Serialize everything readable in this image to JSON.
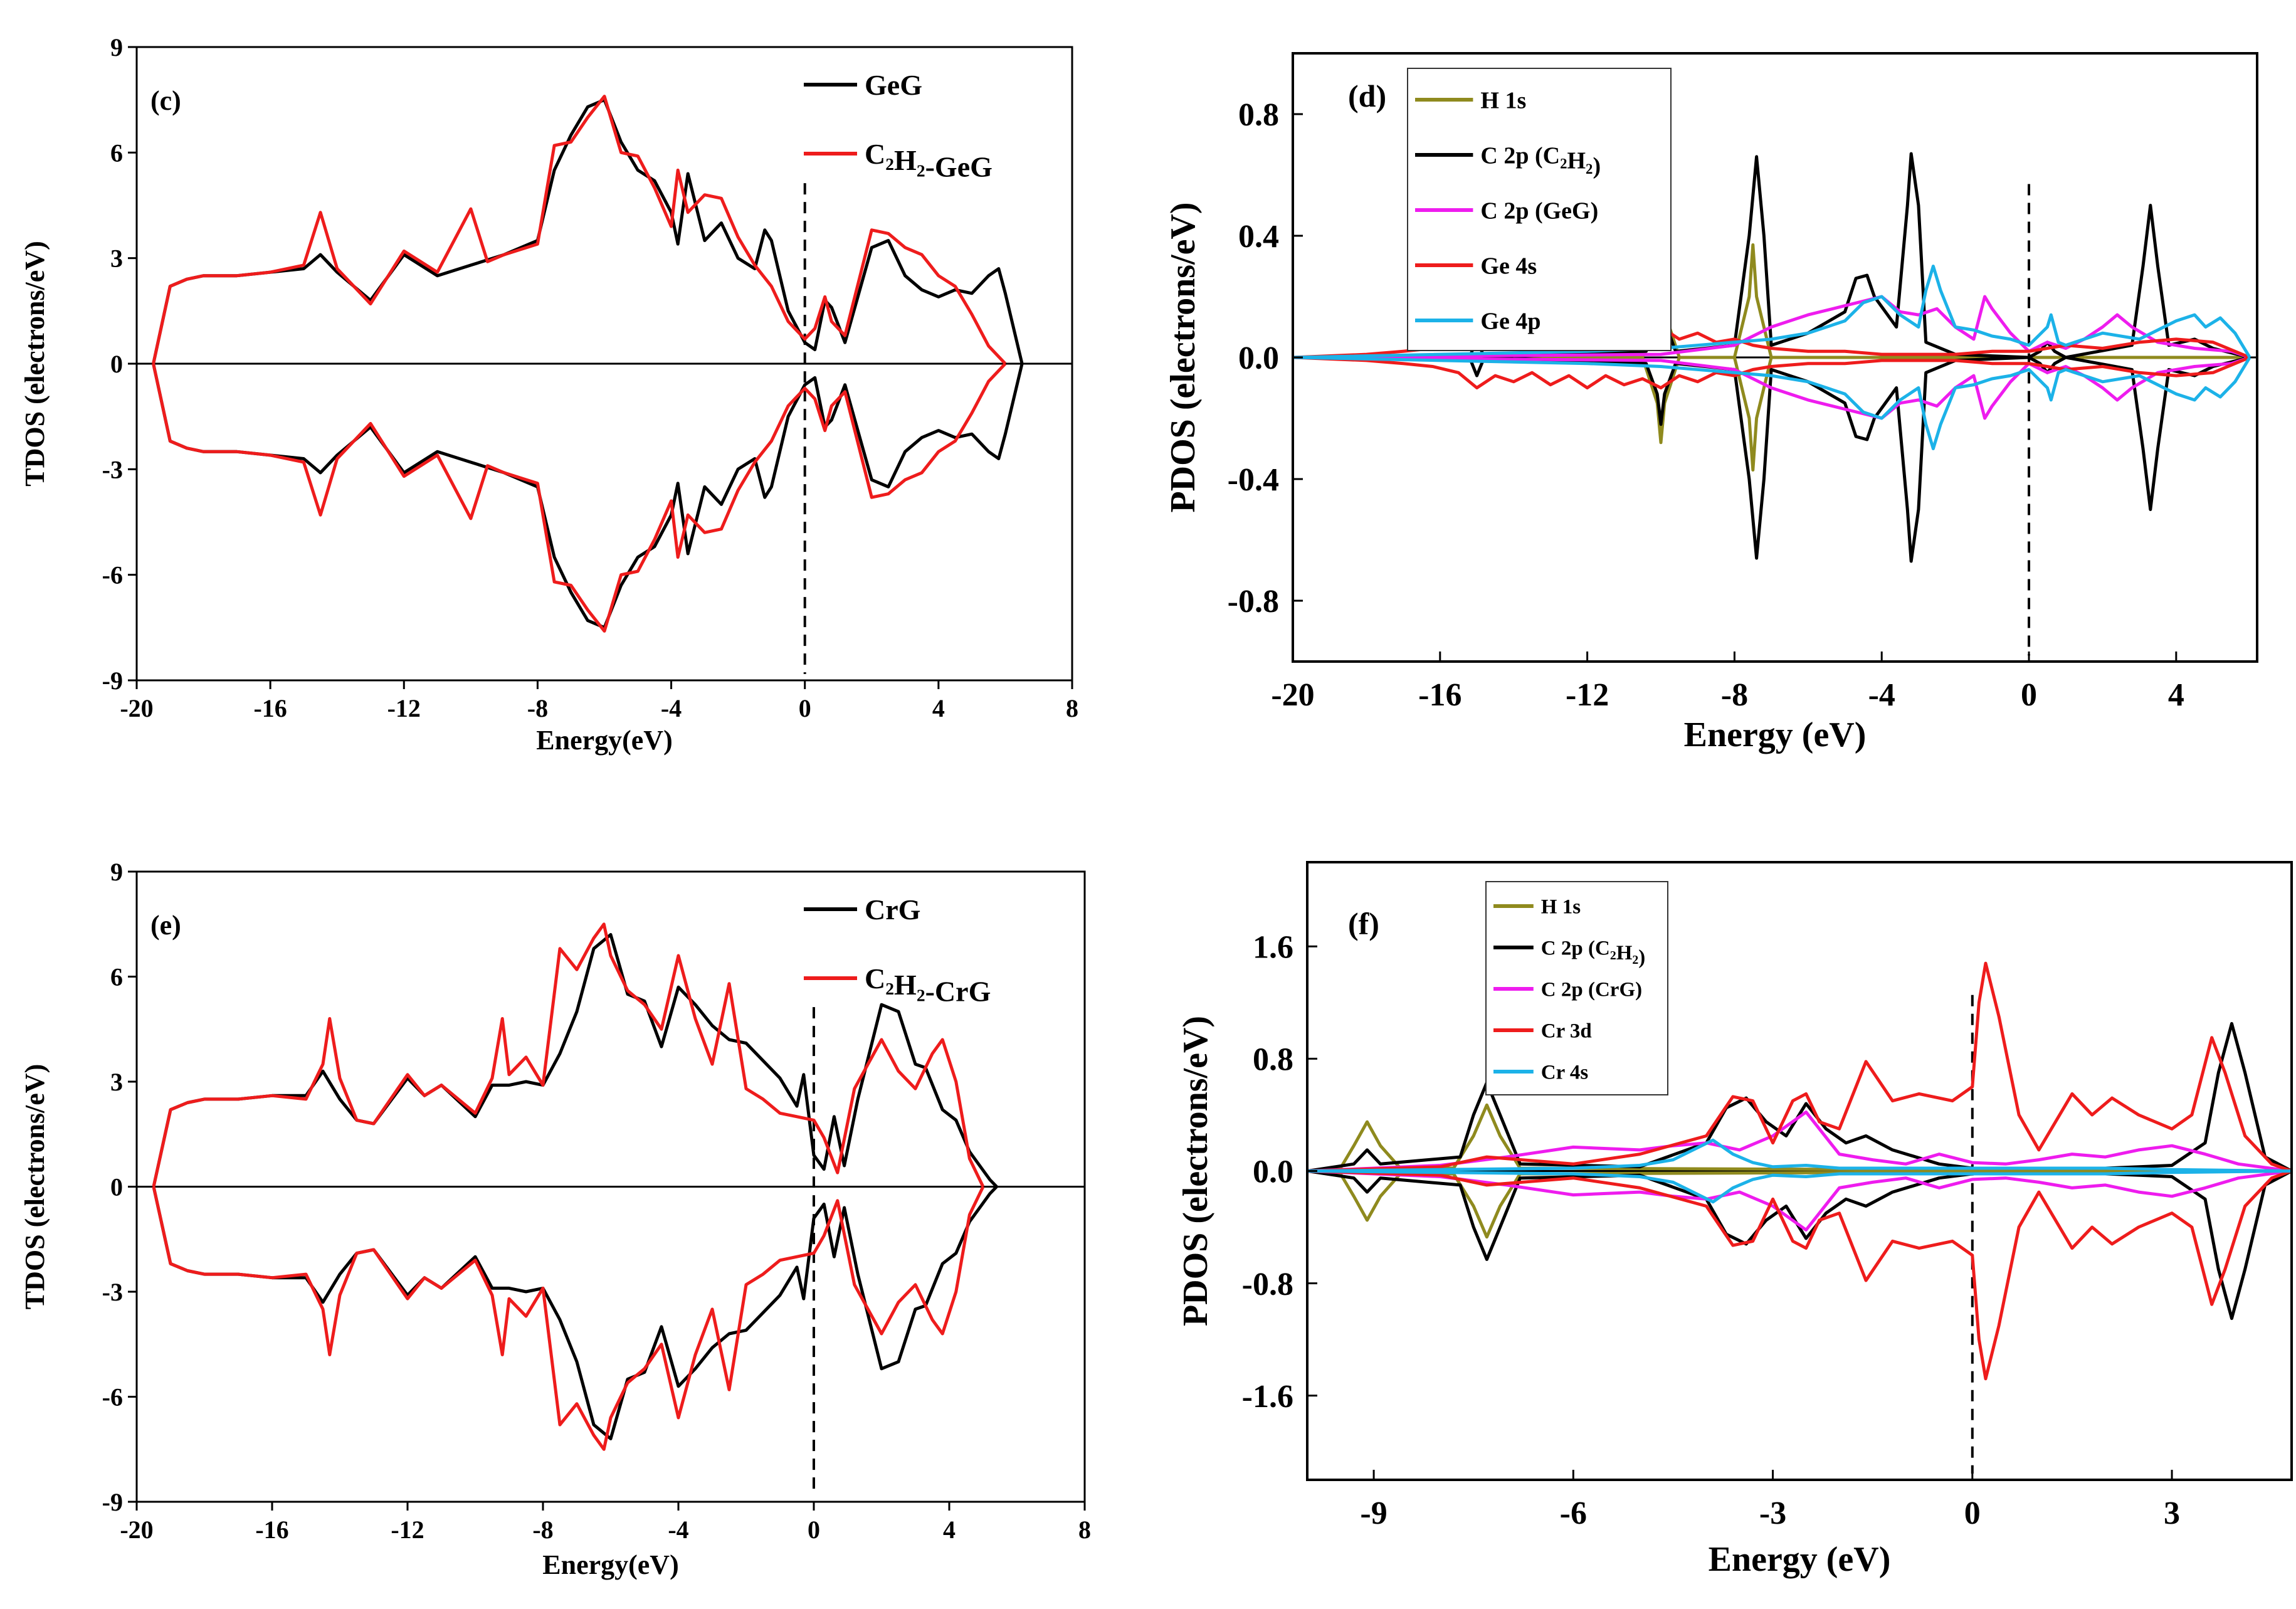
{
  "chart_data": [
    {
      "panel": "(c)",
      "type": "line",
      "xlabel": "Energy(eV)",
      "ylabel": "TDOS (electrons/eV)",
      "xlim": [
        -20,
        8
      ],
      "ylim": [
        -9,
        9
      ],
      "xticks": [
        -20,
        -16,
        -12,
        -8,
        -4,
        0,
        4,
        8
      ],
      "yticks": [
        -9,
        -6,
        -3,
        0,
        3,
        6,
        9
      ],
      "fermi_level": 0,
      "mirrored_spin_down": true,
      "series": [
        {
          "name": "GeG",
          "color": "#000000",
          "x": [
            -19.5,
            -19,
            -18.5,
            -18,
            -17,
            -16,
            -15,
            -14.5,
            -14,
            -13,
            -12,
            -11,
            -10,
            -9,
            -8,
            -7.5,
            -7,
            -6.5,
            -6,
            -5.5,
            -5,
            -4.5,
            -4,
            -3.8,
            -3.5,
            -3,
            -2.5,
            -2,
            -1.5,
            -1.2,
            -1,
            -0.5,
            0,
            0.3,
            0.6,
            0.8,
            1.2,
            2,
            2.5,
            3,
            3.5,
            4,
            4.5,
            5,
            5.5,
            5.8,
            6,
            6.5
          ],
          "y": [
            0,
            2.2,
            2.4,
            2.5,
            2.5,
            2.6,
            2.7,
            3.1,
            2.6,
            1.8,
            3.1,
            2.5,
            2.8,
            3.1,
            3.5,
            5.5,
            6.5,
            7.3,
            7.5,
            6.3,
            5.5,
            5.2,
            4.3,
            3.4,
            5.4,
            3.5,
            4,
            3,
            2.7,
            3.8,
            3.5,
            1.5,
            0.6,
            0.4,
            1.8,
            1.6,
            0.6,
            3.3,
            3.5,
            2.5,
            2.1,
            1.9,
            2.1,
            2,
            2.5,
            2.7,
            2,
            0
          ]
        },
        {
          "name": "C₂H₂-GeG",
          "color": "#ee1c1c",
          "x": [
            -19.5,
            -19,
            -18.5,
            -18,
            -17,
            -16,
            -15,
            -14.5,
            -14,
            -13,
            -12,
            -11,
            -10,
            -9.5,
            -9,
            -8,
            -7.5,
            -7,
            -6.5,
            -6,
            -5.5,
            -5,
            -4.5,
            -4,
            -3.8,
            -3.5,
            -3,
            -2.5,
            -2,
            -1.5,
            -1,
            -0.5,
            0,
            0.3,
            0.6,
            0.8,
            1.2,
            2,
            2.5,
            3,
            3.5,
            4,
            4.5,
            5,
            5.5,
            6
          ],
          "y": [
            0,
            2.2,
            2.4,
            2.5,
            2.5,
            2.6,
            2.8,
            4.3,
            2.7,
            1.7,
            3.2,
            2.6,
            4.4,
            2.9,
            3.1,
            3.4,
            6.2,
            6.3,
            7,
            7.6,
            6,
            5.9,
            5,
            3.9,
            5.5,
            4.3,
            4.8,
            4.7,
            3.6,
            2.8,
            2.2,
            1.2,
            0.7,
            1,
            1.9,
            1.2,
            0.8,
            3.8,
            3.7,
            3.3,
            3.1,
            2.5,
            2.2,
            1.4,
            0.5,
            0
          ]
        }
      ]
    },
    {
      "panel": "(d)",
      "type": "line",
      "xlabel": "Energy (eV)",
      "ylabel": "PDOS (electrons/eV)",
      "xlim": [
        -20,
        6.2
      ],
      "ylim": [
        -1.0,
        1.0
      ],
      "xticks": [
        -20,
        -16,
        -12,
        -8,
        -4,
        0,
        4
      ],
      "yticks": [
        -0.8,
        -0.4,
        0.0,
        0.4,
        0.8
      ],
      "fermi_level": 0,
      "mirrored_spin_down": true,
      "series": [
        {
          "name": "H 1s",
          "color": "#8f8a1e",
          "x": [
            -20,
            -10.5,
            -10.1,
            -10,
            -9.9,
            -9.5,
            -8,
            -7.6,
            -7.5,
            -7.4,
            -7,
            6
          ],
          "y": [
            0,
            0,
            0.15,
            0.28,
            0.15,
            0,
            0,
            0.2,
            0.37,
            0.2,
            0,
            0
          ]
        },
        {
          "name": "C 2p (C₂H₂)",
          "color": "#000000",
          "x": [
            -20,
            -15.2,
            -15,
            -14.8,
            -10.4,
            -10.1,
            -10,
            -9.9,
            -9.6,
            -8,
            -7.6,
            -7.4,
            -7.2,
            -7,
            -6,
            -5,
            -4.7,
            -4.4,
            -4.2,
            -3.6,
            -3.3,
            -3.2,
            -3.0,
            -2.8,
            -2,
            0,
            0.3,
            0.5,
            0.7,
            1,
            2.8,
            3.1,
            3.3,
            3.5,
            3.8,
            4.5,
            5,
            6
          ],
          "y": [
            0,
            0,
            0.06,
            0,
            0.02,
            0.12,
            0.22,
            0.12,
            0.02,
            0.04,
            0.4,
            0.66,
            0.4,
            0.04,
            0.08,
            0.15,
            0.26,
            0.27,
            0.2,
            0.1,
            0.5,
            0.67,
            0.5,
            0.05,
            0.01,
            0,
            0.02,
            0.05,
            0.02,
            0,
            0.04,
            0.3,
            0.5,
            0.3,
            0.04,
            0.06,
            0.03,
            0
          ]
        },
        {
          "name": "C 2p (GeG)",
          "color": "#ee1cee",
          "x": [
            -20,
            -10,
            -8,
            -7,
            -6,
            -5,
            -4,
            -3.5,
            -3,
            -2.5,
            -2,
            -1.5,
            -1.2,
            -1,
            -0.5,
            0,
            0.5,
            1,
            1.5,
            2,
            2.4,
            2.8,
            3.5,
            4.5,
            5.5,
            6
          ],
          "y": [
            0,
            0.01,
            0.04,
            0.1,
            0.14,
            0.17,
            0.2,
            0.15,
            0.14,
            0.16,
            0.1,
            0.06,
            0.2,
            0.16,
            0.08,
            0.02,
            0.05,
            0.03,
            0.06,
            0.1,
            0.14,
            0.1,
            0.05,
            0.03,
            0.02,
            0
          ]
        },
        {
          "name": "Ge 4s",
          "color": "#ee1c1c",
          "x": [
            -20,
            -18,
            -17,
            -16.2,
            -15.5,
            -15,
            -14.5,
            -14,
            -13.5,
            -13,
            -12.5,
            -12,
            -11.5,
            -11,
            -10.5,
            -10,
            -9.5,
            -9,
            -8.5,
            -8,
            -7.5,
            -7,
            -6,
            -5,
            -4,
            -3,
            -2,
            -1,
            0,
            1,
            2,
            3,
            4,
            5,
            6
          ],
          "y": [
            0,
            0.01,
            0.02,
            0.03,
            0.05,
            0.1,
            0.06,
            0.08,
            0.05,
            0.09,
            0.06,
            0.1,
            0.06,
            0.09,
            0.07,
            0.1,
            0.06,
            0.08,
            0.05,
            0.06,
            0.04,
            0.03,
            0.02,
            0.02,
            0.01,
            0.01,
            0.01,
            0.02,
            0.02,
            0.04,
            0.03,
            0.05,
            0.06,
            0.05,
            0
          ]
        },
        {
          "name": "Ge 4p",
          "color": "#1cb2e8",
          "x": [
            -20,
            -12,
            -10,
            -8,
            -7,
            -6,
            -5,
            -4.5,
            -4,
            -3.5,
            -3,
            -2.8,
            -2.6,
            -2.4,
            -2,
            -1.5,
            -1,
            -0.5,
            0,
            0.5,
            0.6,
            0.8,
            1,
            1.5,
            2,
            3,
            4,
            4.5,
            4.8,
            5.2,
            5.6,
            6
          ],
          "y": [
            0,
            0.02,
            0.03,
            0.05,
            0.06,
            0.08,
            0.12,
            0.18,
            0.2,
            0.14,
            0.1,
            0.22,
            0.3,
            0.22,
            0.1,
            0.09,
            0.07,
            0.06,
            0.04,
            0.1,
            0.14,
            0.05,
            0.04,
            0.06,
            0.08,
            0.06,
            0.12,
            0.14,
            0.1,
            0.13,
            0.08,
            0
          ]
        }
      ]
    },
    {
      "panel": "(e)",
      "type": "line",
      "xlabel": "Energy(eV)",
      "ylabel": "TDOS (electrons/eV)",
      "xlim": [
        -20,
        8
      ],
      "ylim": [
        -9,
        9
      ],
      "xticks": [
        -20,
        -16,
        -12,
        -8,
        -4,
        0,
        4,
        8
      ],
      "yticks": [
        -9,
        -6,
        -3,
        0,
        3,
        6,
        9
      ],
      "fermi_level": 0,
      "mirrored_spin_down": true,
      "series": [
        {
          "name": "CrG",
          "color": "#000000",
          "x": [
            -19.5,
            -19,
            -18.5,
            -18,
            -17,
            -16,
            -15,
            -14.5,
            -14,
            -13.5,
            -13,
            -12,
            -11.5,
            -11,
            -10,
            -9.5,
            -9,
            -8.5,
            -8,
            -7.5,
            -7,
            -6.5,
            -6,
            -5.5,
            -5,
            -4.5,
            -4,
            -3.5,
            -3,
            -2.5,
            -2,
            -1.5,
            -1,
            -0.5,
            -0.3,
            0,
            0.3,
            0.6,
            0.9,
            1.3,
            2,
            2.5,
            3,
            3.3,
            3.8,
            4.2,
            4.6,
            5.2,
            5.4
          ],
          "y": [
            0,
            2.2,
            2.4,
            2.5,
            2.5,
            2.6,
            2.6,
            3.3,
            2.5,
            1.9,
            1.8,
            3.1,
            2.6,
            2.9,
            2,
            2.9,
            2.9,
            3,
            2.9,
            3.8,
            5,
            6.8,
            7.2,
            5.5,
            5.3,
            4,
            5.7,
            5.2,
            4.6,
            4.2,
            4.1,
            3.6,
            3.1,
            2.3,
            3.2,
            0.9,
            0.5,
            2.0,
            0.6,
            2.5,
            5.2,
            5.0,
            3.5,
            3.4,
            2.2,
            1.9,
            1.0,
            0.2,
            0
          ]
        },
        {
          "name": "C₂H₂-CrG",
          "color": "#ee1c1c",
          "x": [
            -19.5,
            -19,
            -18.5,
            -18,
            -17,
            -16,
            -15,
            -14.5,
            -14.3,
            -14,
            -13.5,
            -13,
            -12,
            -11.5,
            -11,
            -10,
            -9.5,
            -9.2,
            -9,
            -8.5,
            -8,
            -7.5,
            -7,
            -6.5,
            -6.2,
            -6,
            -5.5,
            -5,
            -4.5,
            -4,
            -3.5,
            -3,
            -2.5,
            -2,
            -1.5,
            -1,
            -0.5,
            0,
            0.3,
            0.7,
            1.2,
            2,
            2.5,
            3,
            3.5,
            3.8,
            4.2,
            4.6,
            5
          ],
          "y": [
            0,
            2.2,
            2.4,
            2.5,
            2.5,
            2.6,
            2.5,
            3.5,
            4.8,
            3.1,
            1.9,
            1.8,
            3.2,
            2.6,
            2.9,
            2.1,
            3.1,
            4.8,
            3.2,
            3.7,
            2.9,
            6.8,
            6.2,
            7.1,
            7.5,
            6.6,
            5.6,
            5.2,
            4.5,
            6.6,
            4.8,
            3.5,
            5.8,
            2.8,
            2.5,
            2.1,
            2,
            1.9,
            1.4,
            0.4,
            2.8,
            4.2,
            3.3,
            2.8,
            3.8,
            4.2,
            3,
            0.8,
            0
          ]
        }
      ]
    },
    {
      "panel": "(f)",
      "type": "line",
      "xlabel": "Energy (eV)",
      "ylabel": "PDOS (electrons/eV)",
      "xlim": [
        -10,
        4.8
      ],
      "ylim": [
        -2.2,
        2.2
      ],
      "xticks": [
        -9,
        -6,
        -3,
        0,
        3
      ],
      "yticks": [
        -1.6,
        -0.8,
        0.0,
        0.8,
        1.6
      ],
      "fermi_level": 0,
      "mirrored_spin_down": true,
      "series": [
        {
          "name": "H 1s",
          "color": "#8f8a1e",
          "x": [
            -10,
            -9.5,
            -9.3,
            -9.1,
            -8.9,
            -8.6,
            -7.8,
            -7.5,
            -7.3,
            -7.1,
            -6.8,
            4.8
          ],
          "y": [
            0,
            0.02,
            0.18,
            0.35,
            0.18,
            0.02,
            0.02,
            0.25,
            0.47,
            0.25,
            0.02,
            0
          ]
        },
        {
          "name": "C 2p (C₂H₂)",
          "color": "#000000",
          "x": [
            -10,
            -9.3,
            -9.1,
            -8.9,
            -7.7,
            -7.5,
            -7.3,
            -7.1,
            -6.8,
            -5,
            -4,
            -3.7,
            -3.4,
            -3.1,
            -2.8,
            -2.5,
            -2.2,
            -1.9,
            -1.6,
            -1.2,
            -0.5,
            0,
            1,
            2,
            3,
            3.5,
            3.7,
            3.9,
            4.1,
            4.4,
            4.8
          ],
          "y": [
            0,
            0.05,
            0.15,
            0.05,
            0.1,
            0.4,
            0.63,
            0.4,
            0.05,
            0.03,
            0.2,
            0.45,
            0.52,
            0.35,
            0.25,
            0.48,
            0.3,
            0.2,
            0.25,
            0.15,
            0.05,
            0.02,
            0.02,
            0.02,
            0.04,
            0.2,
            0.7,
            1.05,
            0.7,
            0.1,
            0
          ]
        },
        {
          "name": "C 2p (CrG)",
          "color": "#ee1cee",
          "x": [
            -10,
            -8,
            -7,
            -6,
            -5,
            -4.5,
            -4,
            -3.5,
            -3,
            -2.5,
            -2,
            -1.5,
            -1,
            -0.5,
            0,
            0.5,
            1,
            1.5,
            2,
            2.5,
            3,
            3.5,
            4,
            4.8
          ],
          "y": [
            0,
            0.04,
            0.1,
            0.17,
            0.15,
            0.18,
            0.2,
            0.15,
            0.25,
            0.42,
            0.12,
            0.08,
            0.05,
            0.12,
            0.06,
            0.05,
            0.08,
            0.12,
            0.1,
            0.15,
            0.18,
            0.12,
            0.05,
            0
          ]
        },
        {
          "name": "Cr 3d",
          "color": "#ee1c1c",
          "x": [
            -10,
            -8,
            -7.3,
            -6,
            -5,
            -4,
            -3.6,
            -3.3,
            -3,
            -2.7,
            -2.5,
            -2.3,
            -2,
            -1.6,
            -1.2,
            -0.8,
            -0.3,
            0,
            0.1,
            0.2,
            0.4,
            0.7,
            1,
            1.5,
            1.8,
            2.1,
            2.5,
            3,
            3.3,
            3.6,
            3.8,
            4.1,
            4.5,
            4.8
          ],
          "y": [
            0,
            0.03,
            0.1,
            0.05,
            0.12,
            0.25,
            0.53,
            0.5,
            0.2,
            0.5,
            0.55,
            0.35,
            0.3,
            0.78,
            0.5,
            0.55,
            0.5,
            0.6,
            1.2,
            1.48,
            1.1,
            0.4,
            0.15,
            0.55,
            0.4,
            0.52,
            0.4,
            0.3,
            0.4,
            0.95,
            0.7,
            0.25,
            0.05,
            0
          ]
        },
        {
          "name": "Cr 4s",
          "color": "#1cb2e8",
          "x": [
            -10,
            -6,
            -5,
            -4.5,
            -4.2,
            -3.9,
            -3.6,
            -3.3,
            -3,
            -2.5,
            -2,
            -1,
            0,
            1,
            2,
            3,
            4.8
          ],
          "y": [
            0,
            0.02,
            0.04,
            0.08,
            0.15,
            0.22,
            0.12,
            0.06,
            0.03,
            0.04,
            0.02,
            0.02,
            0.02,
            0.02,
            0.02,
            0.01,
            0
          ]
        }
      ]
    }
  ]
}
